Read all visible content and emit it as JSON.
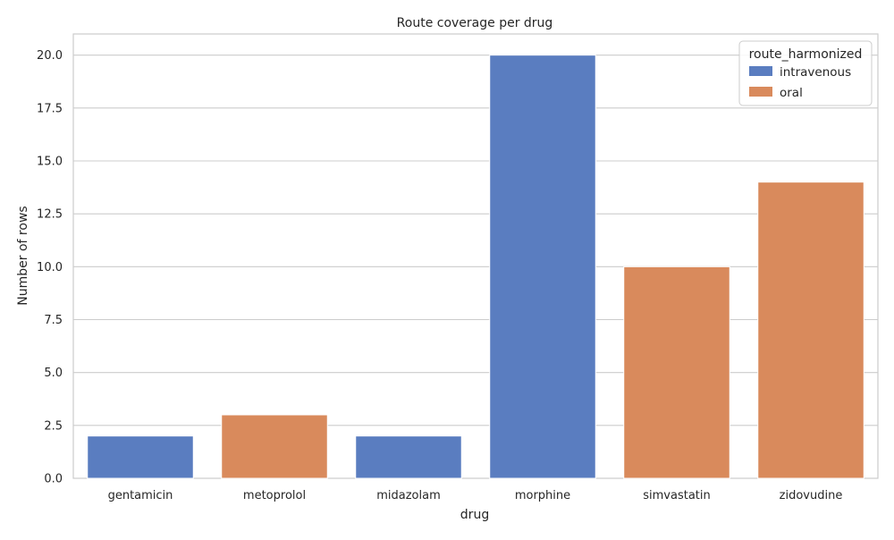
{
  "chart_data": {
    "type": "bar",
    "title": "Route coverage per drug",
    "xlabel": "drug",
    "ylabel": "Number of rows",
    "ylim": [
      0,
      21
    ],
    "yticks": [
      "0.0",
      "2.5",
      "5.0",
      "7.5",
      "10.0",
      "12.5",
      "15.0",
      "17.5",
      "20.0"
    ],
    "categories": [
      "gentamicin",
      "metoprolol",
      "midazolam",
      "morphine",
      "simvastatin",
      "zidovudine"
    ],
    "series": [
      {
        "name": "intravenous",
        "color": "#5a7dc0",
        "values": [
          2,
          null,
          2,
          20,
          null,
          null
        ]
      },
      {
        "name": "oral",
        "color": "#d98a5c",
        "values": [
          null,
          3,
          null,
          null,
          10,
          14
        ]
      }
    ],
    "legend": {
      "title": "route_harmonized",
      "position": "top-right"
    },
    "grid": true
  }
}
